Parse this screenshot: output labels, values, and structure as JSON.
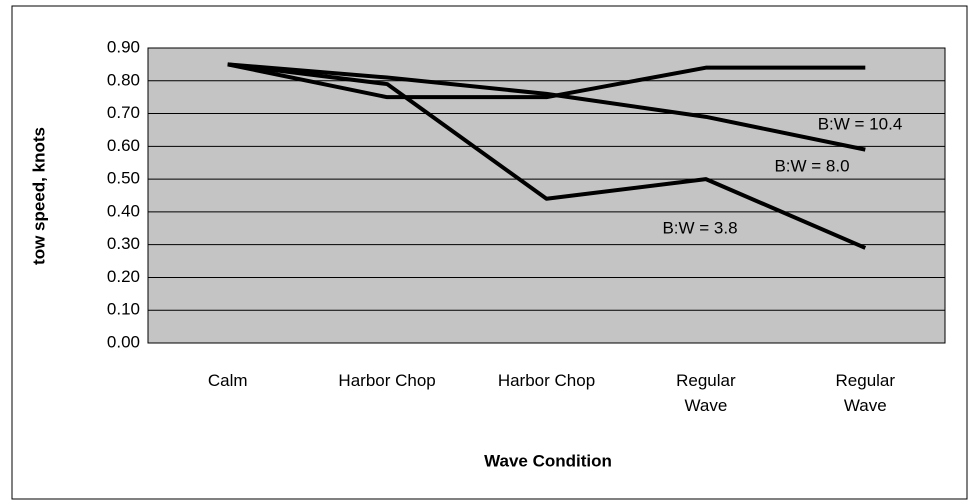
{
  "chart_data": {
    "type": "line",
    "xlabel": "Wave Condition",
    "ylabel": "tow speed, knots",
    "categories": [
      "Calm",
      "Harbor Chop",
      "Harbor Chop",
      "Regular Wave",
      "Regular Wave"
    ],
    "series": [
      {
        "name": "B:W = 10.4",
        "color": "#000000",
        "values": [
          0.85,
          0.75,
          0.75,
          0.84,
          0.84
        ]
      },
      {
        "name": "B:W = 8.0",
        "color": "#000000",
        "values": [
          0.85,
          0.81,
          0.76,
          0.69,
          0.59
        ]
      },
      {
        "name": "B:W = 3.8",
        "color": "#000000",
        "values": [
          0.85,
          0.79,
          0.44,
          0.5,
          0.29
        ]
      }
    ],
    "ylim": [
      0,
      0.9
    ],
    "yticks": [
      {
        "value": 0,
        "label": "0.00"
      },
      {
        "value": 0.1,
        "label": "0.10"
      },
      {
        "value": 0.2,
        "label": "0.20"
      },
      {
        "value": 0.3,
        "label": "0.30"
      },
      {
        "value": 0.4,
        "label": "0.40"
      },
      {
        "value": 0.5,
        "label": "0.50"
      },
      {
        "value": 0.6,
        "label": "0.60"
      },
      {
        "value": 0.7,
        "label": "0.70"
      },
      {
        "value": 0.8,
        "label": "0.80"
      },
      {
        "value": 0.9,
        "label": "0.90"
      }
    ],
    "grid": true,
    "background": "#c4c4c4"
  }
}
